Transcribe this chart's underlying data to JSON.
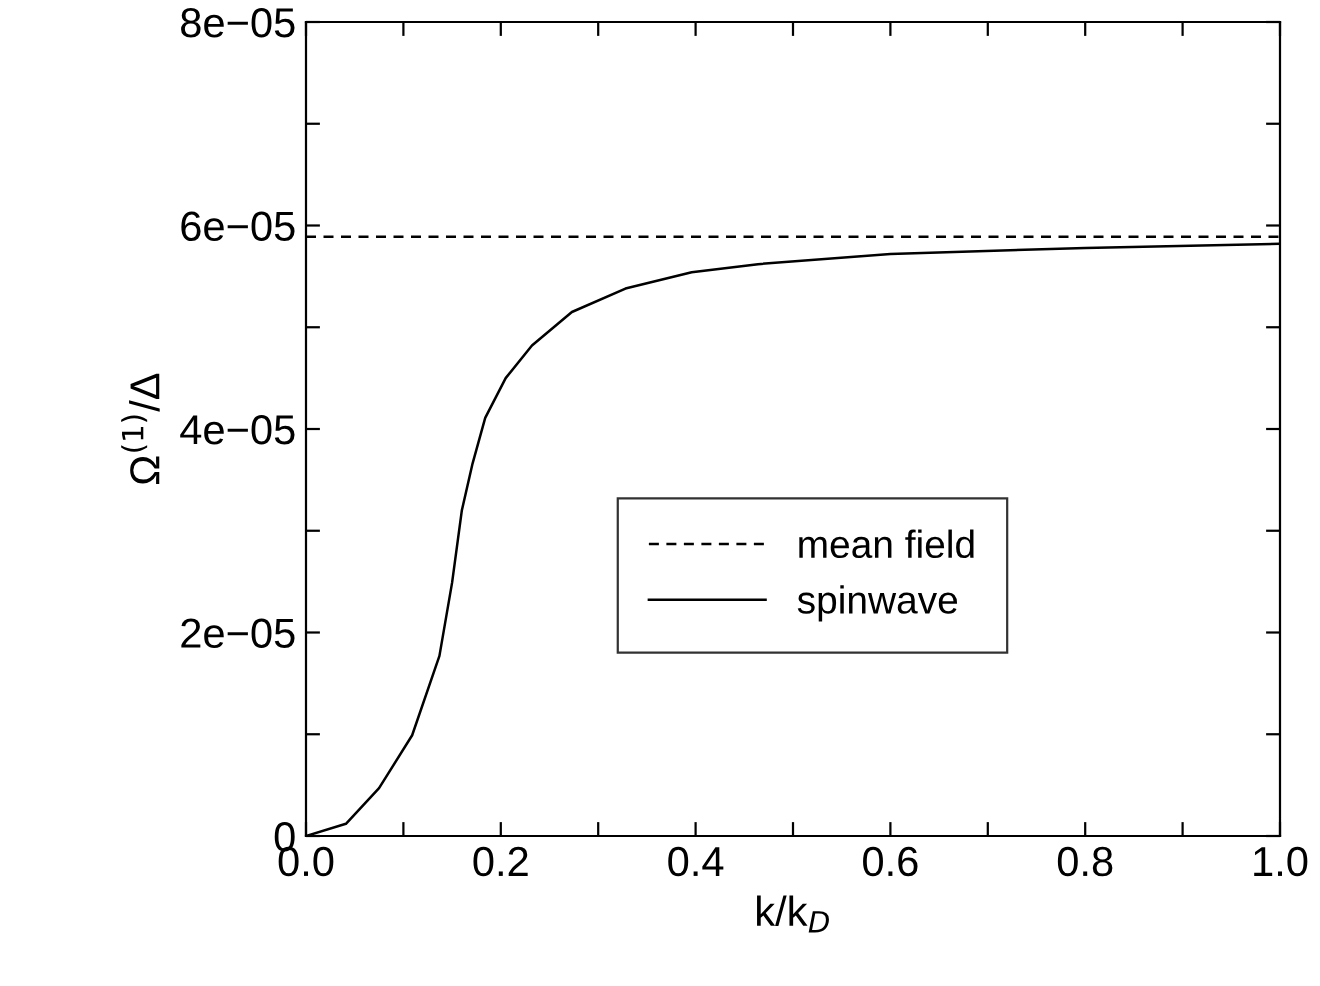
{
  "chart_data": {
    "type": "line",
    "xlabel": "k/k$_{D}$",
    "ylabel": "Ω$^{(1)}$/Δ",
    "xlim": [
      0,
      1
    ],
    "ylim": [
      0,
      8e-05
    ],
    "xticks": [
      {
        "value": 0,
        "label": "0.0"
      },
      {
        "value": 0.1,
        "label": null
      },
      {
        "value": 0.2,
        "label": "0.2"
      },
      {
        "value": 0.3,
        "label": null
      },
      {
        "value": 0.4,
        "label": "0.4"
      },
      {
        "value": 0.5,
        "label": null
      },
      {
        "value": 0.6,
        "label": "0.6"
      },
      {
        "value": 0.7,
        "label": null
      },
      {
        "value": 0.8,
        "label": "0.8"
      },
      {
        "value": 0.9,
        "label": null
      },
      {
        "value": 1,
        "label": "1.0"
      }
    ],
    "yticks": [
      {
        "value": 0,
        "label": "0"
      },
      {
        "value": 1e-05,
        "label": null
      },
      {
        "value": 2e-05,
        "label": "2e−05"
      },
      {
        "value": 3e-05,
        "label": null
      },
      {
        "value": 4e-05,
        "label": "4e−05"
      },
      {
        "value": 5e-05,
        "label": null
      },
      {
        "value": 6e-05,
        "label": "6e−05"
      },
      {
        "value": 7e-05,
        "label": null
      },
      {
        "value": 8e-05,
        "label": "8e−05"
      }
    ],
    "legend": "center",
    "grid": false,
    "series": [
      {
        "name": "mean field",
        "color": "#000000",
        "line_style": "dashed",
        "x": [
          0,
          1
        ],
        "values": [
          5.89e-05,
          5.89e-05
        ]
      },
      {
        "name": "spinwave",
        "color": "#000000",
        "line_style": "solid",
        "x": [
          0,
          0.041,
          0.075,
          0.109,
          0.137,
          0.15,
          0.16,
          0.171,
          0.184,
          0.205,
          0.232,
          0.273,
          0.328,
          0.396,
          0.464,
          0.6,
          0.8,
          1.0
        ],
        "values": [
          0,
          1.2e-06,
          4.7e-06,
          9.9e-06,
          1.77e-05,
          2.49e-05,
          3.2e-05,
          3.66e-05,
          4.11e-05,
          4.5e-05,
          4.82e-05,
          5.15e-05,
          5.38e-05,
          5.54e-05,
          5.62e-05,
          5.72e-05,
          5.78e-05,
          5.82e-05
        ]
      }
    ]
  }
}
